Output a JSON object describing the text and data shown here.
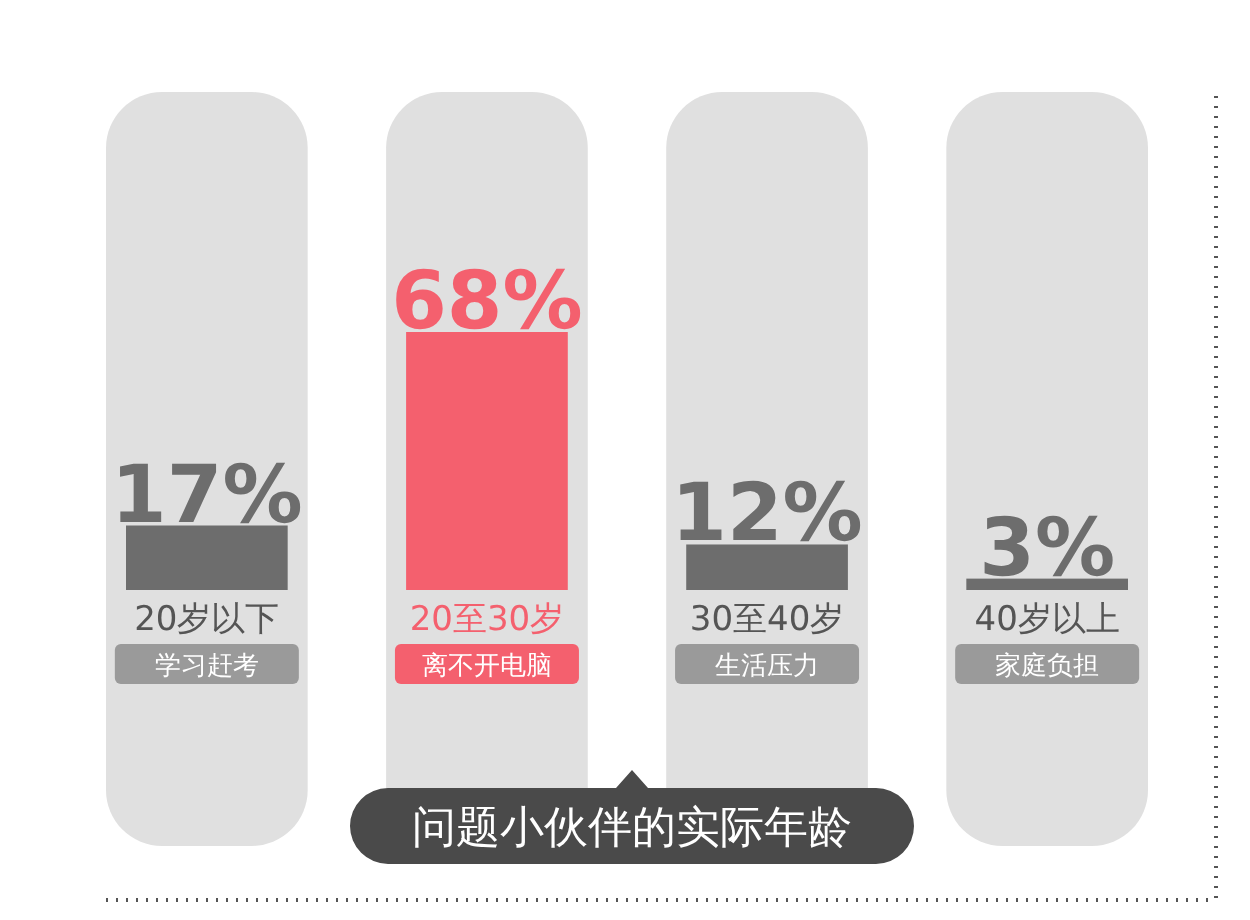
{
  "chart_data": {
    "type": "bar",
    "title": "问题小伙伴的实际年龄",
    "categories": [
      "20岁以下",
      "20至30岁",
      "30至40岁",
      "40岁以上"
    ],
    "values": [
      17,
      68,
      12,
      3
    ],
    "colors": [
      "#6d6d6d",
      "#f4606e",
      "#6d6d6d",
      "#6d6d6d"
    ],
    "value_labels": [
      "17%",
      "68%",
      "12%",
      "3%"
    ],
    "annotations": [
      "学习赶考",
      "离不开电脑",
      "生活压力",
      "家庭负担"
    ]
  }
}
